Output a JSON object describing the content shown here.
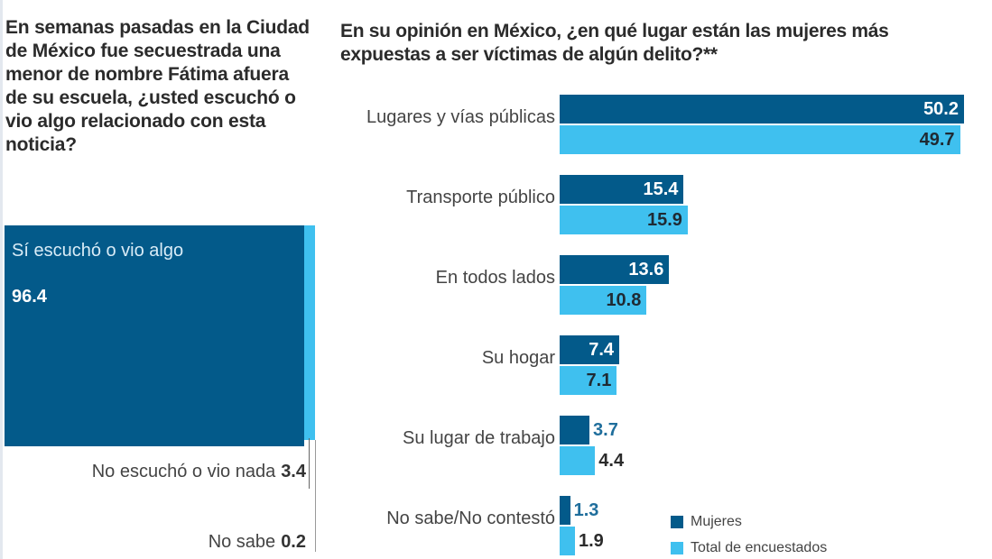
{
  "colors": {
    "mujeres": "#035a8a",
    "total": "#3fc0ef",
    "text_dark": "#2b2b2b",
    "value_blue": "#1f6e9c"
  },
  "chart_data": [
    {
      "type": "bar",
      "orientation": "stacked-100",
      "title": "En semanas pasadas en la Ciudad de México fue secuestrada una menor de nombre Fátima afuera de su escuela, ¿usted escuchó o vio algo relacionado con esta noticia?",
      "categories": [
        "Sí escuchó o vio algo",
        "No escuchó o vio nada",
        "No sabe"
      ],
      "values": [
        96.4,
        3.4,
        0.2
      ],
      "labels": {
        "yes": "Sí escuchó o vio algo",
        "yes_value": "96.4",
        "no": "No escuchó o vio nada",
        "no_value": "3.4",
        "dk": "No sabe",
        "dk_value": "0.2"
      }
    },
    {
      "type": "bar",
      "orientation": "horizontal",
      "title": "En su opinión en México, ¿en qué lugar están las mujeres más expuestas a ser víctimas de algún delito?**",
      "categories": [
        "Lugares y vías públicas",
        "Transporte público",
        "En todos lados",
        "Su hogar",
        "Su lugar de trabajo",
        "No sabe/No contestó"
      ],
      "series": [
        {
          "name": "Mujeres",
          "values": [
            50.2,
            15.4,
            13.6,
            7.4,
            3.7,
            1.3
          ],
          "labels": [
            "50.2",
            "15.4",
            "13.6",
            "7.4",
            "3.7",
            "1.3"
          ]
        },
        {
          "name": "Total de encuestados",
          "values": [
            49.7,
            15.9,
            10.8,
            7.1,
            4.4,
            1.9
          ],
          "labels": [
            "49.7",
            "15.9",
            "10.8",
            "7.1",
            "4.4",
            "1.9"
          ]
        }
      ],
      "xlim": [
        0,
        50.2
      ],
      "legend": "bottom-right",
      "grid": false
    }
  ]
}
